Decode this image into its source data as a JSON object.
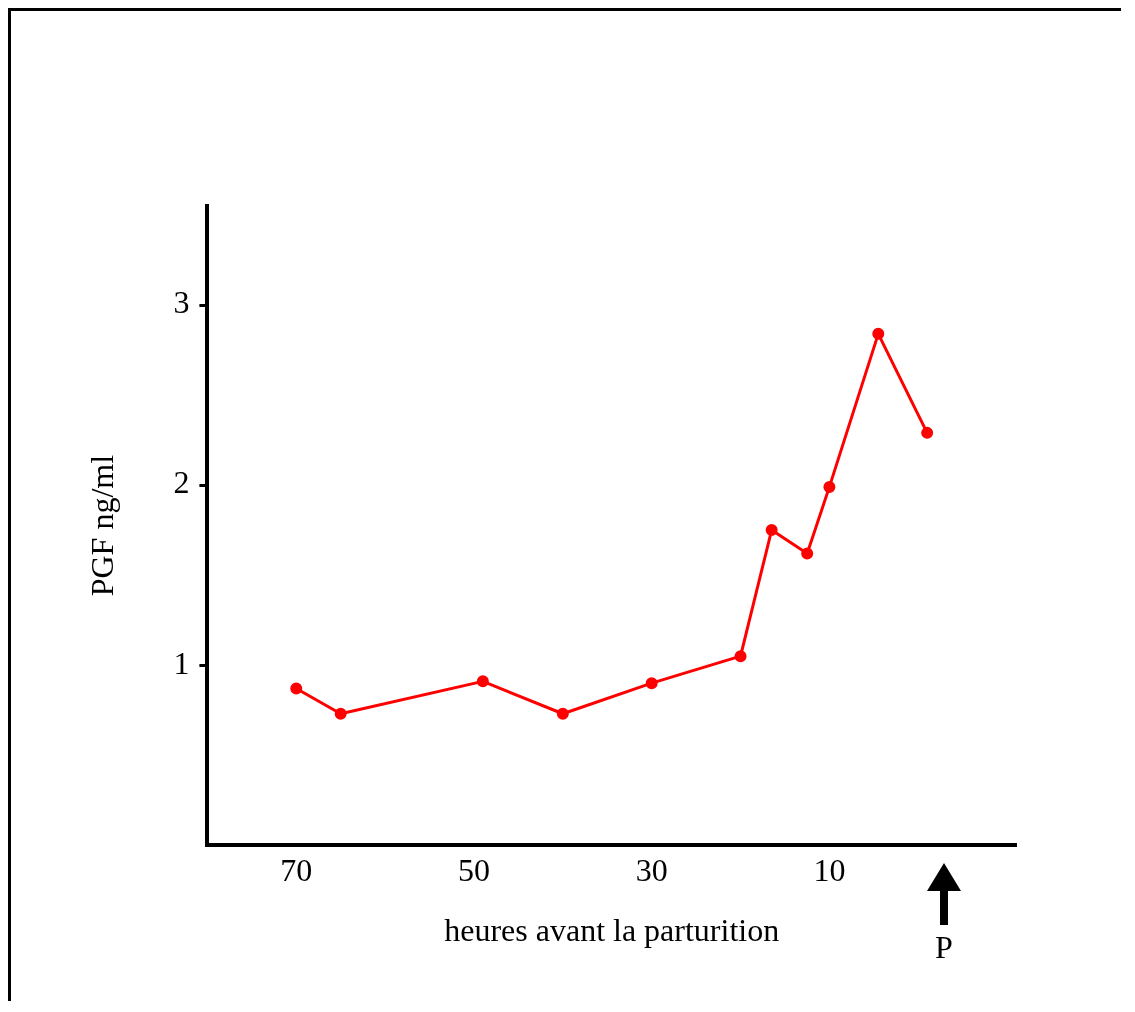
{
  "chart_data": {
    "type": "line",
    "xlabel": "heures avant la parturition",
    "ylabel": "PGF ng/ml",
    "x": [
      70,
      65,
      49,
      40,
      30,
      20,
      16.5,
      12.5,
      10,
      4.5,
      -1
    ],
    "series": [
      {
        "color": "#ff0000",
        "values": [
          0.87,
          0.73,
          0.91,
          0.73,
          0.9,
          1.05,
          1.75,
          1.62,
          1.99,
          2.84,
          2.29
        ]
      }
    ],
    "xlim": [
      80,
      -11
    ],
    "xticks": [
      70,
      50,
      30,
      10
    ],
    "ylim": [
      0,
      3.55
    ],
    "yticks": [
      1,
      2,
      3
    ],
    "annotations": [
      "P"
    ],
    "marker": "circle",
    "line_style": "solid",
    "legend": false,
    "grid": false
  }
}
